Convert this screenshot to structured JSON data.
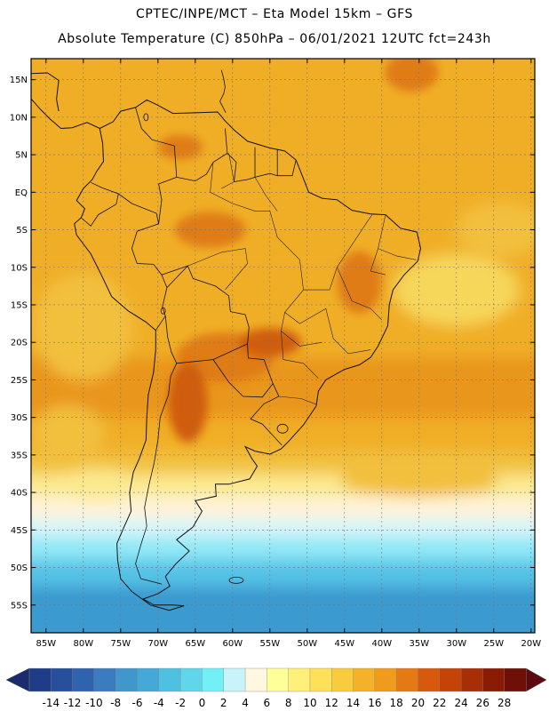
{
  "title_line1": "CPTEC/INPE/MCT –  Eta Model 15km – GFS",
  "title_line2": "Absolute Temperature (C) 850hPa – 06/01/2021 12UTC fct=243h",
  "lat_labels": [
    "15N",
    "10N",
    "5N",
    "EQ",
    "5S",
    "10S",
    "15S",
    "20S",
    "25S",
    "30S",
    "35S",
    "40S",
    "45S",
    "50S",
    "55S"
  ],
  "lon_labels": [
    "85W",
    "80W",
    "75W",
    "70W",
    "65W",
    "60W",
    "55W",
    "50W",
    "45W",
    "40W",
    "35W",
    "30W",
    "25W",
    "20W"
  ],
  "colorbar": {
    "labels": [
      "-14",
      "-12",
      "-10",
      "-8",
      "-6",
      "-4",
      "-2",
      "0",
      "2",
      "4",
      "6",
      "8",
      "10",
      "12",
      "14",
      "16",
      "18",
      "20",
      "22",
      "24",
      "26",
      "28"
    ],
    "colors": [
      "#1f3c88",
      "#284f9c",
      "#2f63ae",
      "#3a7cbf",
      "#3f97cc",
      "#44a9d6",
      "#4fc1e0",
      "#5fd6ea",
      "#73f0f5",
      "#c8f3fb",
      "#fff7df",
      "#ffff9a",
      "#fff07a",
      "#ffe059",
      "#f8cc3d",
      "#f3b22a",
      "#ee9b1e",
      "#e57a14",
      "#d75a0c",
      "#c44307",
      "#a82f05",
      "#8a1c06",
      "#6e1008"
    ],
    "arrow_left": "#1a2b6e",
    "arrow_right": "#5a0a10"
  },
  "palette": {
    "deep_blue": "#3a9ad0",
    "light_blue": "#54c3e6",
    "cyan": "#8ee8f6",
    "pale_blue": "#d6f5fb",
    "cream": "#fff3d8",
    "pale_yellow": "#fbe98e",
    "yellow": "#f6d75a",
    "gold": "#f2c03e",
    "orange_light": "#f0ae28",
    "orange": "#e9961c",
    "orange_dark": "#df7b14",
    "red_orange": "#cf5d0d",
    "coast": "#111111"
  }
}
